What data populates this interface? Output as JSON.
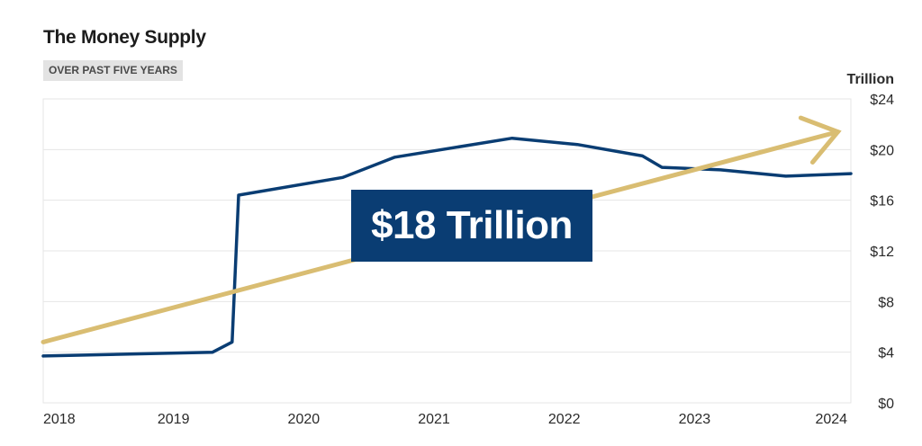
{
  "header": {
    "title": "The Money Supply",
    "subtitle": "OVER PAST FIVE YEARS"
  },
  "callout": {
    "text": "$18 Trillion"
  },
  "colors": {
    "series": "#0a3d73",
    "trend_arrow": "#d9bd72",
    "callout_bg": "#0a3d73",
    "grid": "#e6e6e6"
  },
  "chart_data": {
    "type": "line",
    "title": "The Money Supply",
    "subtitle": "OVER PAST FIVE YEARS",
    "xlabel": "",
    "ylabel": "Trillion",
    "xlim": [
      2018.0,
      2024.2
    ],
    "ylim": [
      0,
      24
    ],
    "x_ticks": [
      "2018",
      "2019",
      "2020",
      "2021",
      "2022",
      "2023",
      "2024"
    ],
    "y_ticks": [
      "$0",
      "$4",
      "$8",
      "$12",
      "$16",
      "$20",
      "$24"
    ],
    "y_tick_values": [
      0,
      4,
      8,
      12,
      16,
      20,
      24
    ],
    "grid": "horizontal",
    "series": [
      {
        "x": [
          2018.0,
          2019.3,
          2019.45,
          2019.5,
          2020.3,
          2020.7,
          2021.6,
          2022.1,
          2022.6,
          2022.75,
          2023.2,
          2023.7,
          2024.2
        ],
        "values": [
          3.7,
          4.0,
          4.8,
          16.4,
          17.8,
          19.4,
          20.9,
          20.4,
          19.5,
          18.6,
          18.4,
          17.9,
          18.1
        ]
      }
    ],
    "annotations": [
      {
        "type": "callout",
        "text": "$18 Trillion"
      },
      {
        "type": "trend-arrow",
        "from": [
          2018.0,
          4.8
        ],
        "to": [
          2024.1,
          21.4
        ]
      }
    ]
  }
}
